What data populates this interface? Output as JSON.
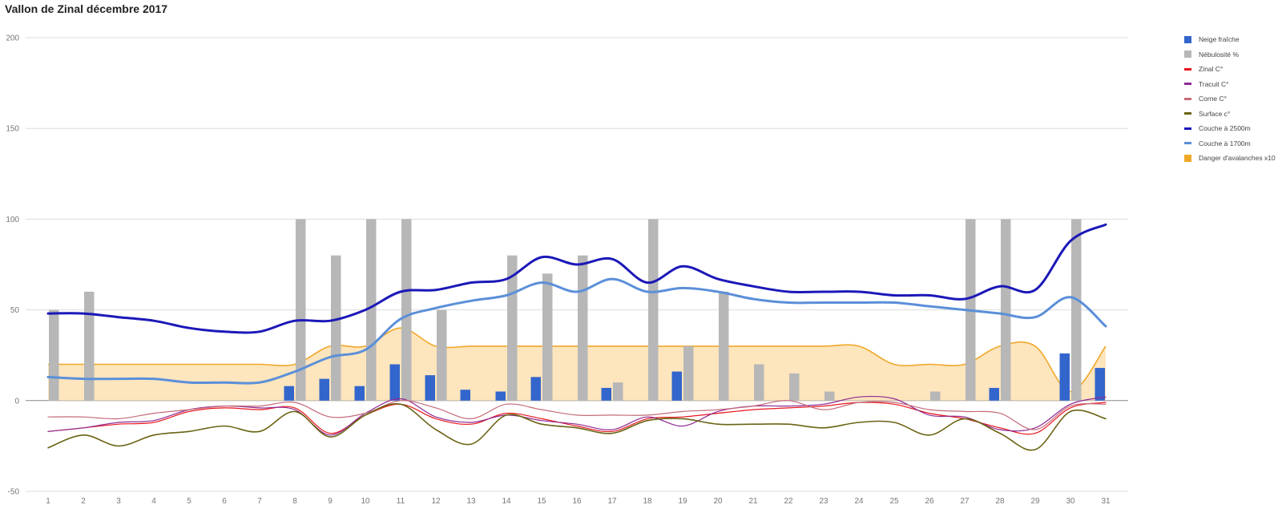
{
  "chart_data": {
    "type": "bar+line+area",
    "title": "Vallon de Zinal décembre 2017",
    "xlabel": "",
    "ylabel": "",
    "ylim": [
      -50,
      200
    ],
    "yticks": [
      200,
      150,
      100,
      50,
      0,
      -50
    ],
    "grid": true,
    "legend_position": "right",
    "categories": [
      "1",
      "2",
      "3",
      "4",
      "5",
      "6",
      "7",
      "8",
      "9",
      "10",
      "11",
      "12",
      "13",
      "14",
      "15",
      "16",
      "17",
      "18",
      "19",
      "20",
      "21",
      "22",
      "23",
      "24",
      "25",
      "26",
      "27",
      "28",
      "29",
      "30",
      "31"
    ],
    "series": [
      {
        "name": "Neige fraîche",
        "kind": "bar",
        "color": "#3366cc",
        "values": [
          0,
          0,
          0,
          0,
          0,
          0,
          0,
          8,
          12,
          8,
          20,
          14,
          6,
          5,
          13,
          0,
          7,
          0,
          16,
          0,
          0,
          0,
          0,
          0,
          0,
          0,
          0,
          7,
          0,
          26,
          18
        ]
      },
      {
        "name": "Nébulosité %",
        "kind": "bar",
        "color": "#b7b7b7",
        "values": [
          50,
          60,
          0,
          0,
          0,
          0,
          0,
          100,
          80,
          100,
          100,
          50,
          0,
          80,
          70,
          80,
          10,
          100,
          30,
          60,
          20,
          15,
          5,
          0,
          0,
          5,
          100,
          100,
          0,
          100,
          0
        ]
      },
      {
        "name": "Zinal C°",
        "kind": "line",
        "color": "#e8181e",
        "values": [
          -17,
          -15,
          -13,
          -12,
          -6,
          -4,
          -5,
          -4,
          -18,
          -8,
          -2,
          -10,
          -13,
          -7,
          -10,
          -14,
          -17,
          -10,
          -9,
          -7,
          -5,
          -4,
          -3,
          -1,
          -2,
          -7,
          -10,
          -15,
          -18,
          -4,
          -1
        ]
      },
      {
        "name": "Tracuit C°",
        "kind": "line",
        "color": "#8e2a93",
        "values": [
          -17,
          -15,
          -12,
          -11,
          -5,
          -3,
          -4,
          -5,
          -19,
          -7,
          1,
          -9,
          -12,
          -8,
          -11,
          -13,
          -16,
          -9,
          -14,
          -6,
          -3,
          -3,
          -2,
          2,
          1,
          -8,
          -9,
          -16,
          -15,
          -2,
          2
        ]
      },
      {
        "name": "Corne C°",
        "kind": "line",
        "color": "#c46a7a",
        "values": [
          -9,
          -9,
          -10,
          -7,
          -5,
          -3,
          -3,
          -1,
          -9,
          -7,
          0,
          -4,
          -10,
          -2,
          -5,
          -8,
          -8,
          -8,
          -6,
          -5,
          -3,
          0,
          -5,
          -1,
          -1,
          -5,
          -6,
          -7,
          -16,
          -3,
          -2
        ]
      },
      {
        "name": "Surface c°",
        "kind": "line",
        "color": "#6b6314",
        "values": [
          -26,
          -19,
          -25,
          -19,
          -17,
          -14,
          -17,
          -6,
          -20,
          -8,
          -2,
          -16,
          -24,
          -8,
          -13,
          -15,
          -18,
          -11,
          -10,
          -13,
          -13,
          -13,
          -15,
          -12,
          -12,
          -19,
          -10,
          -18,
          -27,
          -6,
          -10
        ]
      },
      {
        "name": "Couche à 2500m",
        "kind": "line",
        "color": "#1b18b8",
        "values": [
          48,
          48,
          46,
          44,
          40,
          38,
          38,
          44,
          44,
          50,
          60,
          61,
          65,
          67,
          79,
          75,
          78,
          65,
          74,
          67,
          63,
          60,
          60,
          60,
          58,
          58,
          56,
          63,
          61,
          88,
          97
        ]
      },
      {
        "name": "Couche à 1700m",
        "kind": "line",
        "color": "#5b8fd9",
        "values": [
          13,
          12,
          12,
          12,
          10,
          10,
          10,
          16,
          24,
          28,
          45,
          51,
          55,
          58,
          65,
          60,
          67,
          60,
          62,
          60,
          56,
          54,
          54,
          54,
          54,
          52,
          50,
          48,
          46,
          57,
          41
        ]
      },
      {
        "name": "Danger d'avalanches x10",
        "kind": "area",
        "color": "#f0a829",
        "fill": "#fde0b2",
        "values": [
          20,
          20,
          20,
          20,
          20,
          20,
          20,
          20,
          30,
          30,
          40,
          30,
          30,
          30,
          30,
          30,
          30,
          30,
          30,
          30,
          30,
          30,
          30,
          30,
          20,
          20,
          20,
          30,
          30,
          5,
          30
        ]
      }
    ]
  }
}
